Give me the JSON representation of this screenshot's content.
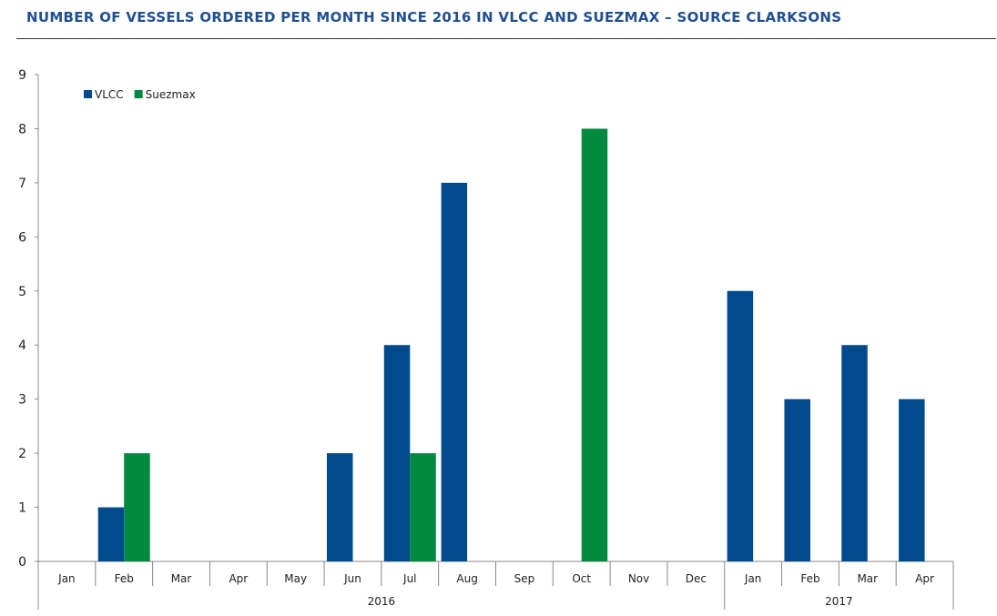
{
  "title": "NUMBER OF VESSELS ORDERED PER MONTH SINCE 2016 IN VLCC AND SUEZMAX – SOURCE CLARKSONS",
  "chart_data": {
    "type": "bar",
    "title": "NUMBER OF VESSELS ORDERED PER MONTH SINCE 2016 IN VLCC AND SUEZMAX – SOURCE CLARKSONS",
    "categories": [
      "Jan",
      "Feb",
      "Mar",
      "Apr",
      "May",
      "Jun",
      "Jul",
      "Aug",
      "Sep",
      "Oct",
      "Nov",
      "Dec",
      "Jan",
      "Feb",
      "Mar",
      "Apr"
    ],
    "groups": [
      {
        "label": "2016",
        "count": 12
      },
      {
        "label": "2017",
        "count": 4
      }
    ],
    "series": [
      {
        "name": "VLCC",
        "color": "#004a8d",
        "values": [
          0,
          1,
          0,
          0,
          0,
          2,
          4,
          7,
          0,
          0,
          0,
          0,
          5,
          3,
          4,
          3
        ]
      },
      {
        "name": "Suezmax",
        "color": "#00893f",
        "values": [
          0,
          2,
          0,
          0,
          0,
          0,
          2,
          0,
          0,
          8,
          0,
          0,
          0,
          0,
          0,
          0
        ]
      }
    ],
    "ylim": [
      0,
      9
    ],
    "yticks": [
      0,
      1,
      2,
      3,
      4,
      5,
      6,
      7,
      8,
      9
    ],
    "grid": false,
    "legend": "top-left"
  }
}
